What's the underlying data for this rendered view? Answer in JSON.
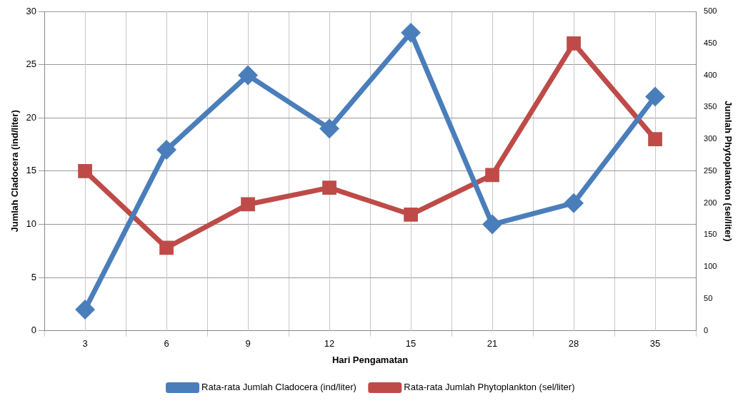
{
  "chart_data": {
    "type": "line",
    "xlabel": "Hari Pengamatan",
    "ylabel": "Jumlah Cladocera (ind/liter)",
    "y2label": "Jumlah Phytoplankton (sel/liter)",
    "categories": [
      "3",
      "6",
      "9",
      "12",
      "15",
      "21",
      "28",
      "35"
    ],
    "series": [
      {
        "name": "Rata-rata Jumlah Cladocera (ind/liter)",
        "color": "#4a7ebb",
        "marker": "diamond",
        "values": [
          2,
          17,
          24,
          19,
          28,
          10,
          12,
          22
        ]
      },
      {
        "name": "Rata-rata Jumlah Phytoplankton (sel/liter)",
        "color": "#be4b48",
        "marker": "square",
        "axis": "y2",
        "values": [
          250,
          130,
          198,
          224,
          182,
          244,
          450,
          300
        ]
      }
    ],
    "ylim": [
      0,
      30
    ],
    "yticks": [
      0,
      5,
      10,
      15,
      20,
      25,
      30
    ],
    "y2lim": [
      0,
      500
    ],
    "y2ticks": [
      0,
      50,
      100,
      150,
      200,
      250,
      300,
      350,
      400,
      450,
      500
    ],
    "grid": true,
    "legend": "bottom"
  }
}
